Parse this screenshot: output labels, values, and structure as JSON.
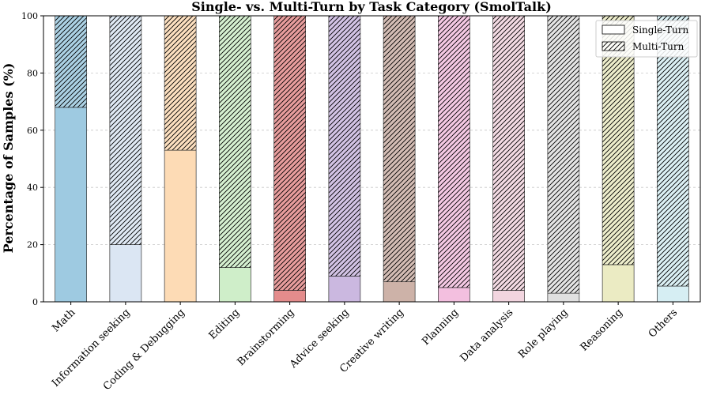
{
  "chart_data": {
    "type": "bar",
    "stacked": true,
    "title": "Single- vs. Multi-Turn by Task Category (SmolTalk)",
    "xlabel": "",
    "ylabel": "Percentage of Samples (%)",
    "ylim": [
      0,
      100
    ],
    "yticks": [
      0,
      20,
      40,
      60,
      80,
      100
    ],
    "grid": "horizontal dashed",
    "legend_position": "top-right",
    "categories": [
      "Math",
      "Information seeking",
      "Coding & Debugging",
      "Editing",
      "Brainstorming",
      "Advice seeking",
      "Creative writing",
      "Planning",
      "Data analysis",
      "Role playing",
      "Reasoning",
      "Others"
    ],
    "category_colors": [
      "#9ecae1",
      "#dbe6f3",
      "#fddbb5",
      "#cfeec9",
      "#e48c8c",
      "#cbb8e0",
      "#cdb2a8",
      "#f3bfdf",
      "#f2d5df",
      "#e0e0e0",
      "#ebebc3",
      "#d6eef3"
    ],
    "series": [
      {
        "name": "Single-Turn",
        "pattern": "solid",
        "values": [
          68,
          20,
          53,
          12,
          4,
          9,
          7,
          5,
          4,
          3,
          13,
          5.5
        ]
      },
      {
        "name": "Multi-Turn",
        "pattern": "hatched",
        "values": [
          32,
          80,
          47,
          88,
          96,
          91,
          93,
          95,
          96,
          97,
          87,
          94.5
        ]
      }
    ]
  }
}
